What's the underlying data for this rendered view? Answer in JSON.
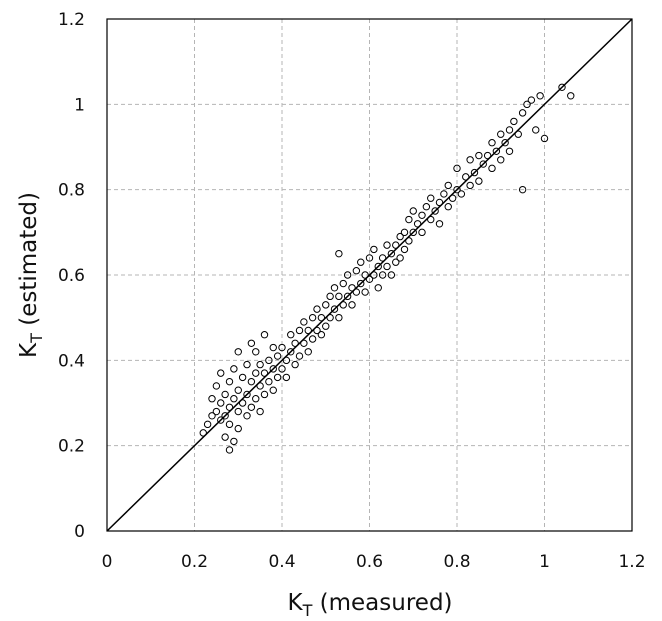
{
  "chart_data": {
    "type": "scatter",
    "title": "",
    "xlabel": {
      "main": "K",
      "sub": "T",
      "rest": " (measured)"
    },
    "ylabel": {
      "main": "K",
      "sub": "T",
      "rest": " (estimated)"
    },
    "xlim": [
      0,
      1.2
    ],
    "ylim": [
      0,
      1.2
    ],
    "xticks": [
      "0",
      "0.2",
      "0.4",
      "0.6",
      "0.8",
      "1",
      "1.2"
    ],
    "yticks": [
      "0",
      "0.2",
      "0.4",
      "0.6",
      "0.8",
      "1",
      "1.2"
    ],
    "grid": true,
    "grid_style": "dashed",
    "reference_line": {
      "from": [
        0,
        0
      ],
      "to": [
        1.2,
        1.2
      ]
    },
    "marker": "open-circle",
    "marker_color": "#000000",
    "series": [
      {
        "points": [
          [
            0.22,
            0.23
          ],
          [
            0.23,
            0.25
          ],
          [
            0.24,
            0.27
          ],
          [
            0.24,
            0.31
          ],
          [
            0.25,
            0.28
          ],
          [
            0.25,
            0.34
          ],
          [
            0.26,
            0.26
          ],
          [
            0.26,
            0.3
          ],
          [
            0.26,
            0.37
          ],
          [
            0.27,
            0.22
          ],
          [
            0.27,
            0.27
          ],
          [
            0.27,
            0.32
          ],
          [
            0.28,
            0.19
          ],
          [
            0.28,
            0.25
          ],
          [
            0.28,
            0.29
          ],
          [
            0.28,
            0.35
          ],
          [
            0.29,
            0.21
          ],
          [
            0.29,
            0.31
          ],
          [
            0.29,
            0.38
          ],
          [
            0.3,
            0.24
          ],
          [
            0.3,
            0.28
          ],
          [
            0.3,
            0.33
          ],
          [
            0.3,
            0.42
          ],
          [
            0.31,
            0.3
          ],
          [
            0.31,
            0.36
          ],
          [
            0.32,
            0.27
          ],
          [
            0.32,
            0.32
          ],
          [
            0.32,
            0.39
          ],
          [
            0.33,
            0.29
          ],
          [
            0.33,
            0.35
          ],
          [
            0.33,
            0.44
          ],
          [
            0.34,
            0.31
          ],
          [
            0.34,
            0.37
          ],
          [
            0.34,
            0.42
          ],
          [
            0.35,
            0.28
          ],
          [
            0.35,
            0.34
          ],
          [
            0.35,
            0.39
          ],
          [
            0.36,
            0.32
          ],
          [
            0.36,
            0.37
          ],
          [
            0.36,
            0.46
          ],
          [
            0.37,
            0.35
          ],
          [
            0.37,
            0.4
          ],
          [
            0.38,
            0.33
          ],
          [
            0.38,
            0.38
          ],
          [
            0.38,
            0.43
          ],
          [
            0.39,
            0.36
          ],
          [
            0.39,
            0.41
          ],
          [
            0.4,
            0.38
          ],
          [
            0.4,
            0.43
          ],
          [
            0.41,
            0.36
          ],
          [
            0.41,
            0.4
          ],
          [
            0.42,
            0.42
          ],
          [
            0.42,
            0.46
          ],
          [
            0.43,
            0.39
          ],
          [
            0.43,
            0.44
          ],
          [
            0.44,
            0.41
          ],
          [
            0.44,
            0.47
          ],
          [
            0.45,
            0.44
          ],
          [
            0.45,
            0.49
          ],
          [
            0.46,
            0.42
          ],
          [
            0.46,
            0.47
          ],
          [
            0.47,
            0.45
          ],
          [
            0.47,
            0.5
          ],
          [
            0.48,
            0.47
          ],
          [
            0.48,
            0.52
          ],
          [
            0.49,
            0.46
          ],
          [
            0.49,
            0.5
          ],
          [
            0.5,
            0.48
          ],
          [
            0.5,
            0.53
          ],
          [
            0.51,
            0.5
          ],
          [
            0.51,
            0.55
          ],
          [
            0.52,
            0.52
          ],
          [
            0.52,
            0.57
          ],
          [
            0.53,
            0.5
          ],
          [
            0.53,
            0.55
          ],
          [
            0.53,
            0.65
          ],
          [
            0.54,
            0.53
          ],
          [
            0.54,
            0.58
          ],
          [
            0.55,
            0.55
          ],
          [
            0.55,
            0.6
          ],
          [
            0.56,
            0.53
          ],
          [
            0.56,
            0.57
          ],
          [
            0.57,
            0.56
          ],
          [
            0.57,
            0.61
          ],
          [
            0.58,
            0.58
          ],
          [
            0.58,
            0.63
          ],
          [
            0.59,
            0.6
          ],
          [
            0.59,
            0.56
          ],
          [
            0.6,
            0.59
          ],
          [
            0.6,
            0.64
          ],
          [
            0.61,
            0.6
          ],
          [
            0.61,
            0.66
          ],
          [
            0.62,
            0.62
          ],
          [
            0.62,
            0.57
          ],
          [
            0.63,
            0.64
          ],
          [
            0.63,
            0.6
          ],
          [
            0.64,
            0.62
          ],
          [
            0.64,
            0.67
          ],
          [
            0.65,
            0.65
          ],
          [
            0.65,
            0.6
          ],
          [
            0.66,
            0.67
          ],
          [
            0.66,
            0.63
          ],
          [
            0.67,
            0.69
          ],
          [
            0.67,
            0.64
          ],
          [
            0.68,
            0.7
          ],
          [
            0.68,
            0.66
          ],
          [
            0.69,
            0.68
          ],
          [
            0.69,
            0.73
          ],
          [
            0.7,
            0.7
          ],
          [
            0.7,
            0.75
          ],
          [
            0.71,
            0.72
          ],
          [
            0.72,
            0.74
          ],
          [
            0.72,
            0.7
          ],
          [
            0.73,
            0.76
          ],
          [
            0.74,
            0.73
          ],
          [
            0.74,
            0.78
          ],
          [
            0.75,
            0.75
          ],
          [
            0.76,
            0.77
          ],
          [
            0.76,
            0.72
          ],
          [
            0.77,
            0.79
          ],
          [
            0.78,
            0.76
          ],
          [
            0.78,
            0.81
          ],
          [
            0.79,
            0.78
          ],
          [
            0.8,
            0.8
          ],
          [
            0.8,
            0.85
          ],
          [
            0.81,
            0.79
          ],
          [
            0.82,
            0.83
          ],
          [
            0.83,
            0.81
          ],
          [
            0.83,
            0.87
          ],
          [
            0.84,
            0.84
          ],
          [
            0.85,
            0.82
          ],
          [
            0.85,
            0.88
          ],
          [
            0.86,
            0.86
          ],
          [
            0.87,
            0.88
          ],
          [
            0.88,
            0.85
          ],
          [
            0.88,
            0.91
          ],
          [
            0.89,
            0.89
          ],
          [
            0.9,
            0.87
          ],
          [
            0.9,
            0.93
          ],
          [
            0.91,
            0.91
          ],
          [
            0.92,
            0.94
          ],
          [
            0.92,
            0.89
          ],
          [
            0.93,
            0.96
          ],
          [
            0.94,
            0.93
          ],
          [
            0.95,
            0.98
          ],
          [
            0.95,
            0.8
          ],
          [
            0.96,
            1.0
          ],
          [
            0.97,
            1.01
          ],
          [
            0.98,
            0.94
          ],
          [
            0.99,
            1.02
          ],
          [
            1.0,
            0.92
          ],
          [
            1.04,
            1.04
          ],
          [
            1.06,
            1.02
          ]
        ]
      }
    ]
  }
}
